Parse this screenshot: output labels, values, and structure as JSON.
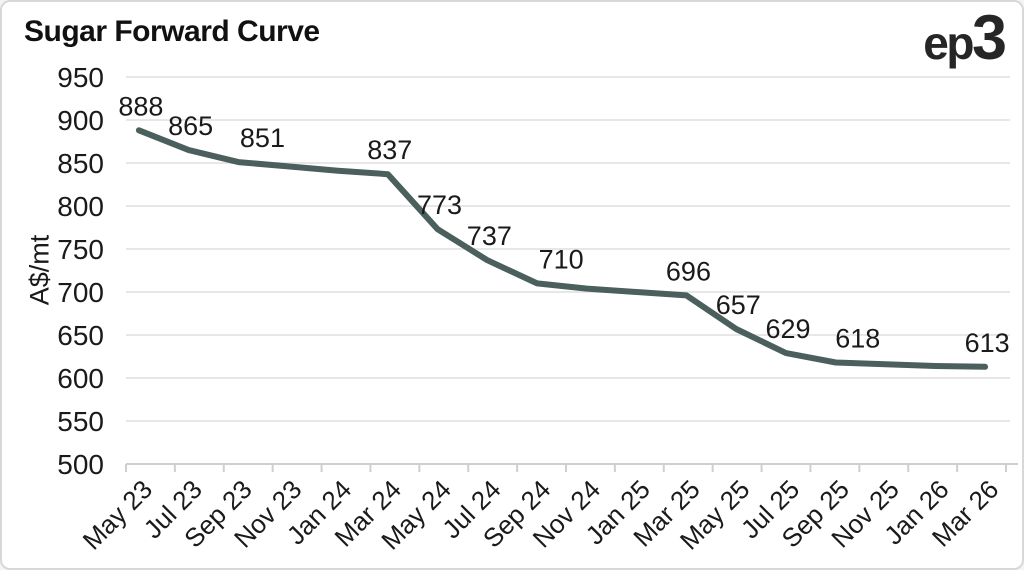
{
  "header": {
    "title": "Sugar Forward Curve",
    "logo_ep": "ep",
    "logo_3": "3"
  },
  "chart_data": {
    "type": "line",
    "title": "Sugar Forward Curve",
    "xlabel": "",
    "ylabel": "A$/mt",
    "ylim": [
      500,
      950
    ],
    "yticks": [
      950,
      900,
      850,
      800,
      750,
      700,
      650,
      600,
      550,
      500
    ],
    "grid": true,
    "legend": "none",
    "line_color": "#4b5f5d",
    "grid_color": "#e7e7e7",
    "axis_color": "#cfcfcf",
    "label_color": "#1a1a1a",
    "categories": [
      "May 23",
      "Jul 23",
      "Sep 23",
      "Nov 23",
      "Jan 24",
      "Mar 24",
      "May 24",
      "Jul 24",
      "Sep 24",
      "Nov 24",
      "Jan 25",
      "Mar 25",
      "May 25",
      "Jul 25",
      "Sep 25",
      "Nov 25",
      "Jan 26",
      "Mar 26"
    ],
    "values": [
      888,
      865,
      851,
      846,
      841,
      837,
      773,
      737,
      710,
      704,
      700,
      696,
      657,
      629,
      618,
      616,
      614,
      613
    ],
    "point_labels": [
      "888",
      "865",
      "851",
      "",
      "",
      "837",
      "773",
      "737",
      "710",
      "",
      "",
      "696",
      "657",
      "629",
      "618",
      "",
      "",
      "613"
    ]
  }
}
